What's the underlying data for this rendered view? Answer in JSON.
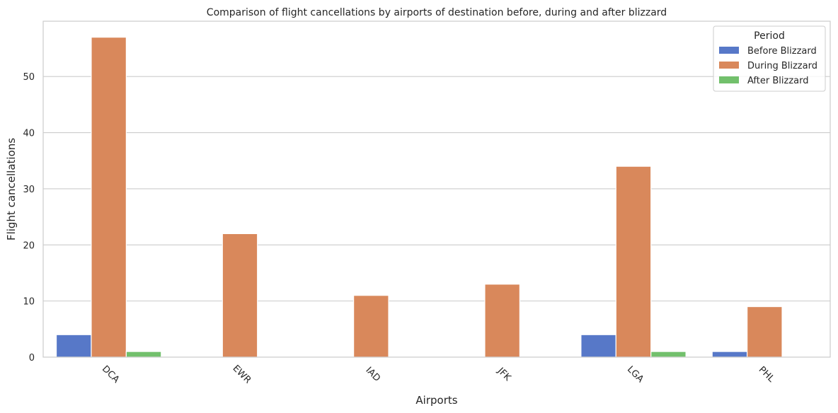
{
  "chart_data": {
    "type": "bar",
    "title": "Comparison of flight cancellations by airports of destination before, during and after blizzard",
    "xlabel": "Airports",
    "ylabel": "Flight cancellations",
    "categories": [
      "DCA",
      "EWR",
      "IAD",
      "JFK",
      "LGA",
      "PHL"
    ],
    "series": [
      {
        "name": "Before Blizzard",
        "color": "#5778c8",
        "values": [
          4,
          0,
          0,
          0,
          4,
          1
        ]
      },
      {
        "name": "During Blizzard",
        "color": "#d9885b",
        "values": [
          57,
          22,
          11,
          13,
          34,
          9
        ]
      },
      {
        "name": "After Blizzard",
        "color": "#72c06c",
        "values": [
          1,
          0,
          0,
          0,
          1,
          0
        ]
      }
    ],
    "ylim": [
      0,
      59.85
    ],
    "yticks": [
      0,
      10,
      20,
      30,
      40,
      50
    ],
    "legend": {
      "title": "Period",
      "position": "top-right"
    },
    "grid": "horizontal"
  }
}
